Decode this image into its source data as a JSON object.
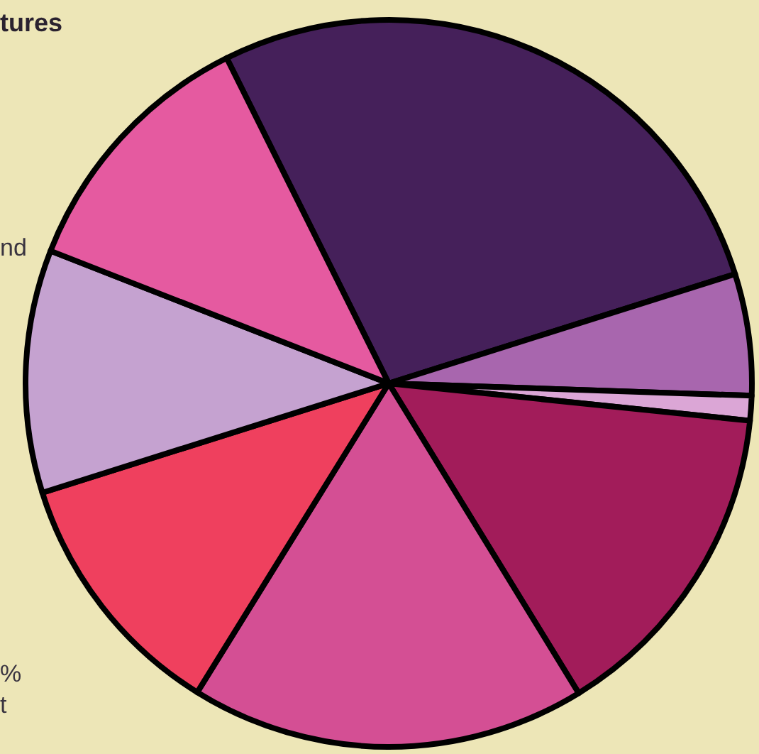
{
  "chart_data": {
    "type": "pie",
    "title": "tures",
    "annotations": [
      "nd",
      "%",
      "t"
    ],
    "categories": [
      null,
      null,
      null,
      null,
      null,
      null,
      null,
      null
    ],
    "values": [
      27.5,
      5.4,
      1.1,
      14.6,
      17.6,
      11.3,
      10.8,
      11.7
    ],
    "colors": [
      "#45205a",
      "#a866ae",
      "#dba6d6",
      "#a21c5a",
      "#d44f94",
      "#ef405e",
      "#c5a2d0",
      "#e55aa0"
    ]
  }
}
